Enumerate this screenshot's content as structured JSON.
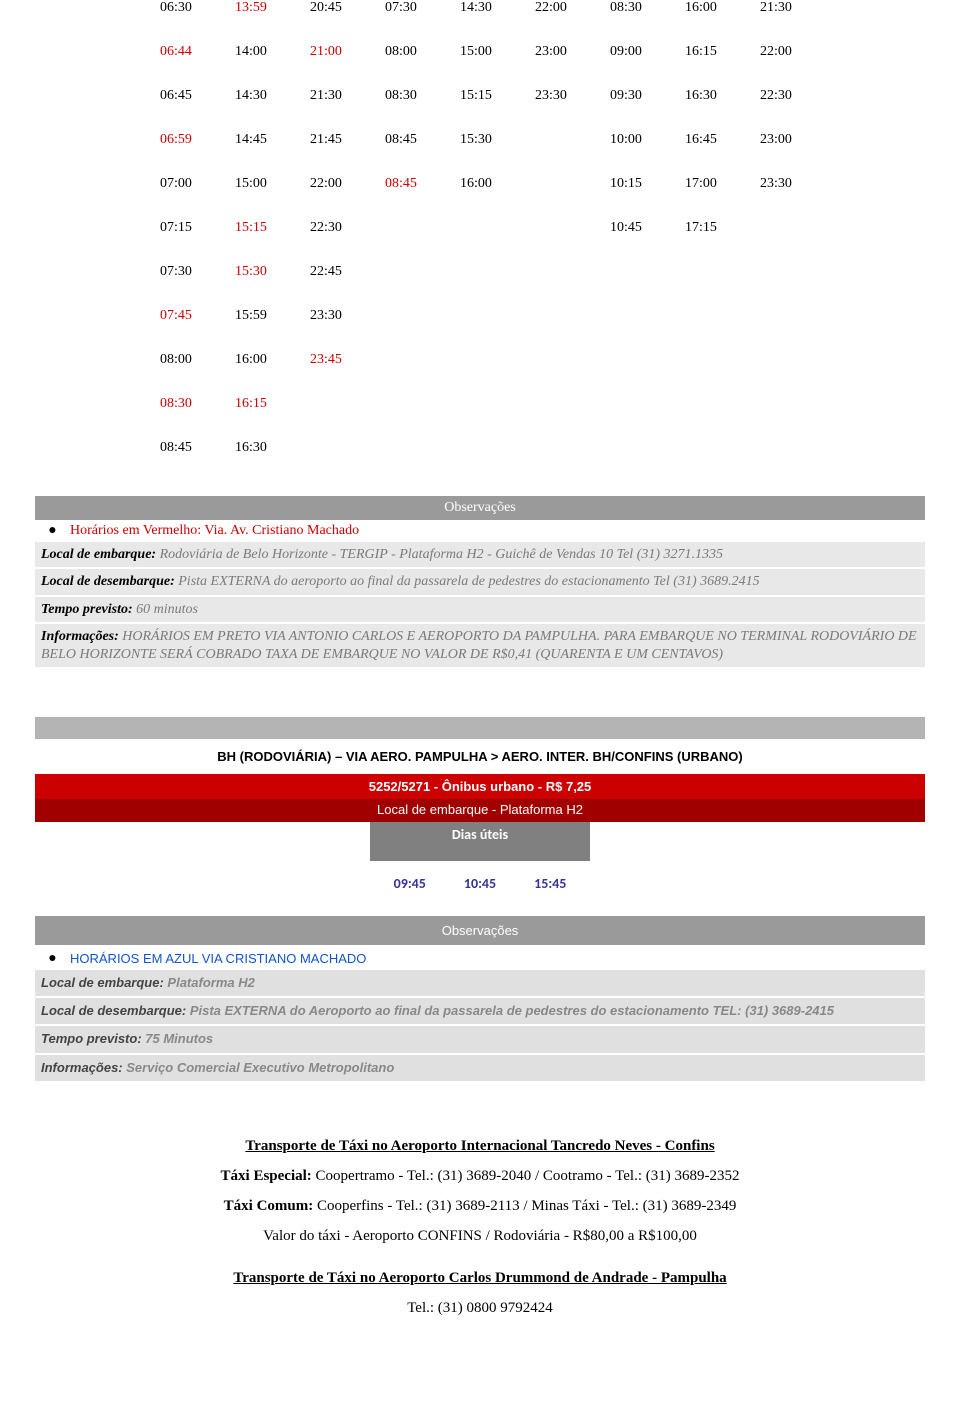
{
  "schedule": {
    "rows": [
      [
        {
          "t": "06:30",
          "c": "black"
        },
        {
          "t": "13:59",
          "c": "red"
        },
        {
          "t": "20:45",
          "c": "black"
        },
        {
          "t": "07:30",
          "c": "black"
        },
        {
          "t": "14:30",
          "c": "black"
        },
        {
          "t": "22:00",
          "c": "black"
        },
        {
          "t": "08:30",
          "c": "black"
        },
        {
          "t": "16:00",
          "c": "black"
        },
        {
          "t": "21:30",
          "c": "black"
        }
      ],
      [
        {
          "t": "06:44",
          "c": "red"
        },
        {
          "t": "14:00",
          "c": "black"
        },
        {
          "t": "21:00",
          "c": "red"
        },
        {
          "t": "08:00",
          "c": "black"
        },
        {
          "t": "15:00",
          "c": "black"
        },
        {
          "t": "23:00",
          "c": "black"
        },
        {
          "t": "09:00",
          "c": "black"
        },
        {
          "t": "16:15",
          "c": "black"
        },
        {
          "t": "22:00",
          "c": "black"
        }
      ],
      [
        {
          "t": "06:45",
          "c": "black"
        },
        {
          "t": "14:30",
          "c": "black"
        },
        {
          "t": "21:30",
          "c": "black"
        },
        {
          "t": "08:30",
          "c": "black"
        },
        {
          "t": "15:15",
          "c": "black"
        },
        {
          "t": "23:30",
          "c": "black"
        },
        {
          "t": "09:30",
          "c": "black"
        },
        {
          "t": "16:30",
          "c": "black"
        },
        {
          "t": "22:30",
          "c": "black"
        }
      ],
      [
        {
          "t": "06:59",
          "c": "red"
        },
        {
          "t": "14:45",
          "c": "black"
        },
        {
          "t": "21:45",
          "c": "black"
        },
        {
          "t": "08:45",
          "c": "black"
        },
        {
          "t": "15:30",
          "c": "black"
        },
        {
          "t": "",
          "c": "black"
        },
        {
          "t": "10:00",
          "c": "black"
        },
        {
          "t": "16:45",
          "c": "black"
        },
        {
          "t": "23:00",
          "c": "black"
        }
      ],
      [
        {
          "t": "07:00",
          "c": "black"
        },
        {
          "t": "15:00",
          "c": "black"
        },
        {
          "t": "22:00",
          "c": "black"
        },
        {
          "t": "08:45",
          "c": "red"
        },
        {
          "t": "16:00",
          "c": "black"
        },
        {
          "t": "",
          "c": "black"
        },
        {
          "t": "10:15",
          "c": "black"
        },
        {
          "t": "17:00",
          "c": "black"
        },
        {
          "t": "23:30",
          "c": "black"
        }
      ],
      [
        {
          "t": "07:15",
          "c": "black"
        },
        {
          "t": "15:15",
          "c": "red"
        },
        {
          "t": "22:30",
          "c": "black"
        },
        {
          "t": "",
          "c": "black"
        },
        {
          "t": "",
          "c": "black"
        },
        {
          "t": "",
          "c": "black"
        },
        {
          "t": "10:45",
          "c": "black"
        },
        {
          "t": "17:15",
          "c": "black"
        },
        {
          "t": "",
          "c": "black"
        }
      ],
      [
        {
          "t": "07:30",
          "c": "black"
        },
        {
          "t": "15:30",
          "c": "red"
        },
        {
          "t": "22:45",
          "c": "black"
        }
      ],
      [
        {
          "t": "07:45",
          "c": "red"
        },
        {
          "t": "15:59",
          "c": "black"
        },
        {
          "t": "23:30",
          "c": "black"
        }
      ],
      [
        {
          "t": "08:00",
          "c": "black"
        },
        {
          "t": "16:00",
          "c": "black"
        },
        {
          "t": "23:45",
          "c": "red"
        }
      ],
      [
        {
          "t": "08:30",
          "c": "red"
        },
        {
          "t": "16:15",
          "c": "red"
        }
      ],
      [
        {
          "t": "08:45",
          "c": "black"
        },
        {
          "t": "16:30",
          "c": "black"
        }
      ]
    ]
  },
  "obs1": {
    "title": "Observações",
    "note": "Horários em Vermelho: Via. Av. Cristiano Machado",
    "embarque_label": "Local de embarque: ",
    "embarque": "Rodoviária de Belo Horizonte - TERGIP - Plataforma H2 - Guichê de Vendas 10 Tel (31) 3271.1335",
    "desembarque_label": "Local de desembarque: ",
    "desembarque": "Pista EXTERNA do aeroporto ao final da passarela de pedestres do estacionamento Tel (31) 3689.2415",
    "tempo_label": "Tempo previsto: ",
    "tempo": "60 minutos",
    "info_label": "Informações: ",
    "info": "HORÁRIOS EM PRETO VIA ANTONIO CARLOS E AEROPORTO DA PAMPULHA. PARA EMBARQUE NO TERMINAL RODOVIÁRIO DE BELO HORIZONTE SERÁ COBRADO TAXA DE EMBARQUE NO VALOR DE R$0,41 (QUARENTA E UM CENTAVOS)"
  },
  "route2": {
    "title": "BH (RODOVIÁRIA) – VIA AERO. PAMPULHA > AERO. INTER. BH/CONFINS (URBANO)",
    "fare": "5252/5271 - Ônibus urbano - R$ 7,25",
    "platform": "Local de embarque - Plataforma H2",
    "dias": "Dias úteis",
    "times": [
      "09:45",
      "10:45",
      "15:45"
    ]
  },
  "obs2": {
    "title": "Observações",
    "note": "HORÁRIOS EM AZUL VIA CRISTIANO MACHADO",
    "embarque_label": "Local de embarque: ",
    "embarque": "Plataforma H2",
    "desembarque_label": "Local de desembarque: ",
    "desembarque": "Pista EXTERNA do Aeroporto ao final da passarela de pedestres do estacionamento TEL: (31) 3689-2415",
    "tempo_label": "Tempo previsto: ",
    "tempo": "75 Minutos",
    "info_label": "Informações: ",
    "info": "Serviço Comercial Executivo Metropolitano"
  },
  "footer": {
    "h1": "Transporte de Táxi no Aeroporto Internacional Tancredo Neves - Confins",
    "l1_label": "Táxi Especial: ",
    "l1": "Coopertramo - Tel.: (31) 3689-2040 / Cootramo - Tel.: (31) 3689-2352",
    "l2_label": "Táxi Comum: ",
    "l2": "Cooperfins - Tel.: (31) 3689-2113 / Minas Táxi - Tel.: (31) 3689-2349",
    "l3": "Valor do táxi - Aeroporto CONFINS / Rodoviária - R$80,00 a R$100,00",
    "h2": "Transporte de Táxi no Aeroporto Carlos Drummond de Andrade - Pampulha",
    "l4": "Tel.: (31) 0800 9792424"
  }
}
